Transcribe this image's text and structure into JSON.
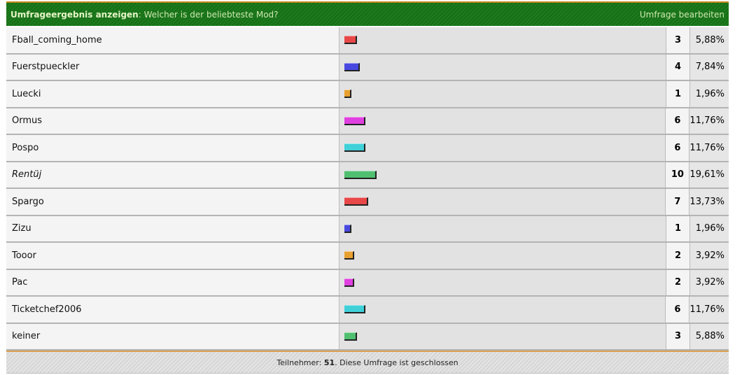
{
  "header": {
    "title": "Umfrageergebnis anzeigen",
    "separator": ":",
    "question": "Welcher is der beliebteste Mod?",
    "edit_link": "Umfrage bearbeiten"
  },
  "options": [
    {
      "name": "Fball_coming_home",
      "votes": "3",
      "percent": "5,88%",
      "pct": 5.88,
      "color": "#e84848"
    },
    {
      "name": "Fuerstpueckler",
      "votes": "4",
      "percent": "7,84%",
      "pct": 7.84,
      "color": "#4848e0"
    },
    {
      "name": "Luecki",
      "votes": "1",
      "percent": "1,96%",
      "pct": 1.96,
      "color": "#e8a030"
    },
    {
      "name": "Ormus",
      "votes": "6",
      "percent": "11,76%",
      "pct": 11.76,
      "color": "#e040e0"
    },
    {
      "name": "Pospo",
      "votes": "6",
      "percent": "11,76%",
      "pct": 11.76,
      "color": "#40d0d8"
    },
    {
      "name": "Rentüj",
      "votes": "10",
      "percent": "19,61%",
      "pct": 19.61,
      "color": "#50c070",
      "italic": true
    },
    {
      "name": "Spargo",
      "votes": "7",
      "percent": "13,73%",
      "pct": 13.73,
      "color": "#e84848"
    },
    {
      "name": "Zizu",
      "votes": "1",
      "percent": "1,96%",
      "pct": 1.96,
      "color": "#4848e0"
    },
    {
      "name": "Tooor",
      "votes": "2",
      "percent": "3,92%",
      "pct": 3.92,
      "color": "#e8a030"
    },
    {
      "name": "Pac",
      "votes": "2",
      "percent": "3,92%",
      "pct": 3.92,
      "color": "#e040e0"
    },
    {
      "name": "Ticketchef2006",
      "votes": "6",
      "percent": "11,76%",
      "pct": 11.76,
      "color": "#40d0d8"
    },
    {
      "name": "keiner",
      "votes": "3",
      "percent": "5,88%",
      "pct": 5.88,
      "color": "#50c070"
    }
  ],
  "footer": {
    "label": "Teilnehmer:",
    "count": "51",
    "status": ". Diese Umfrage ist geschlossen"
  }
}
